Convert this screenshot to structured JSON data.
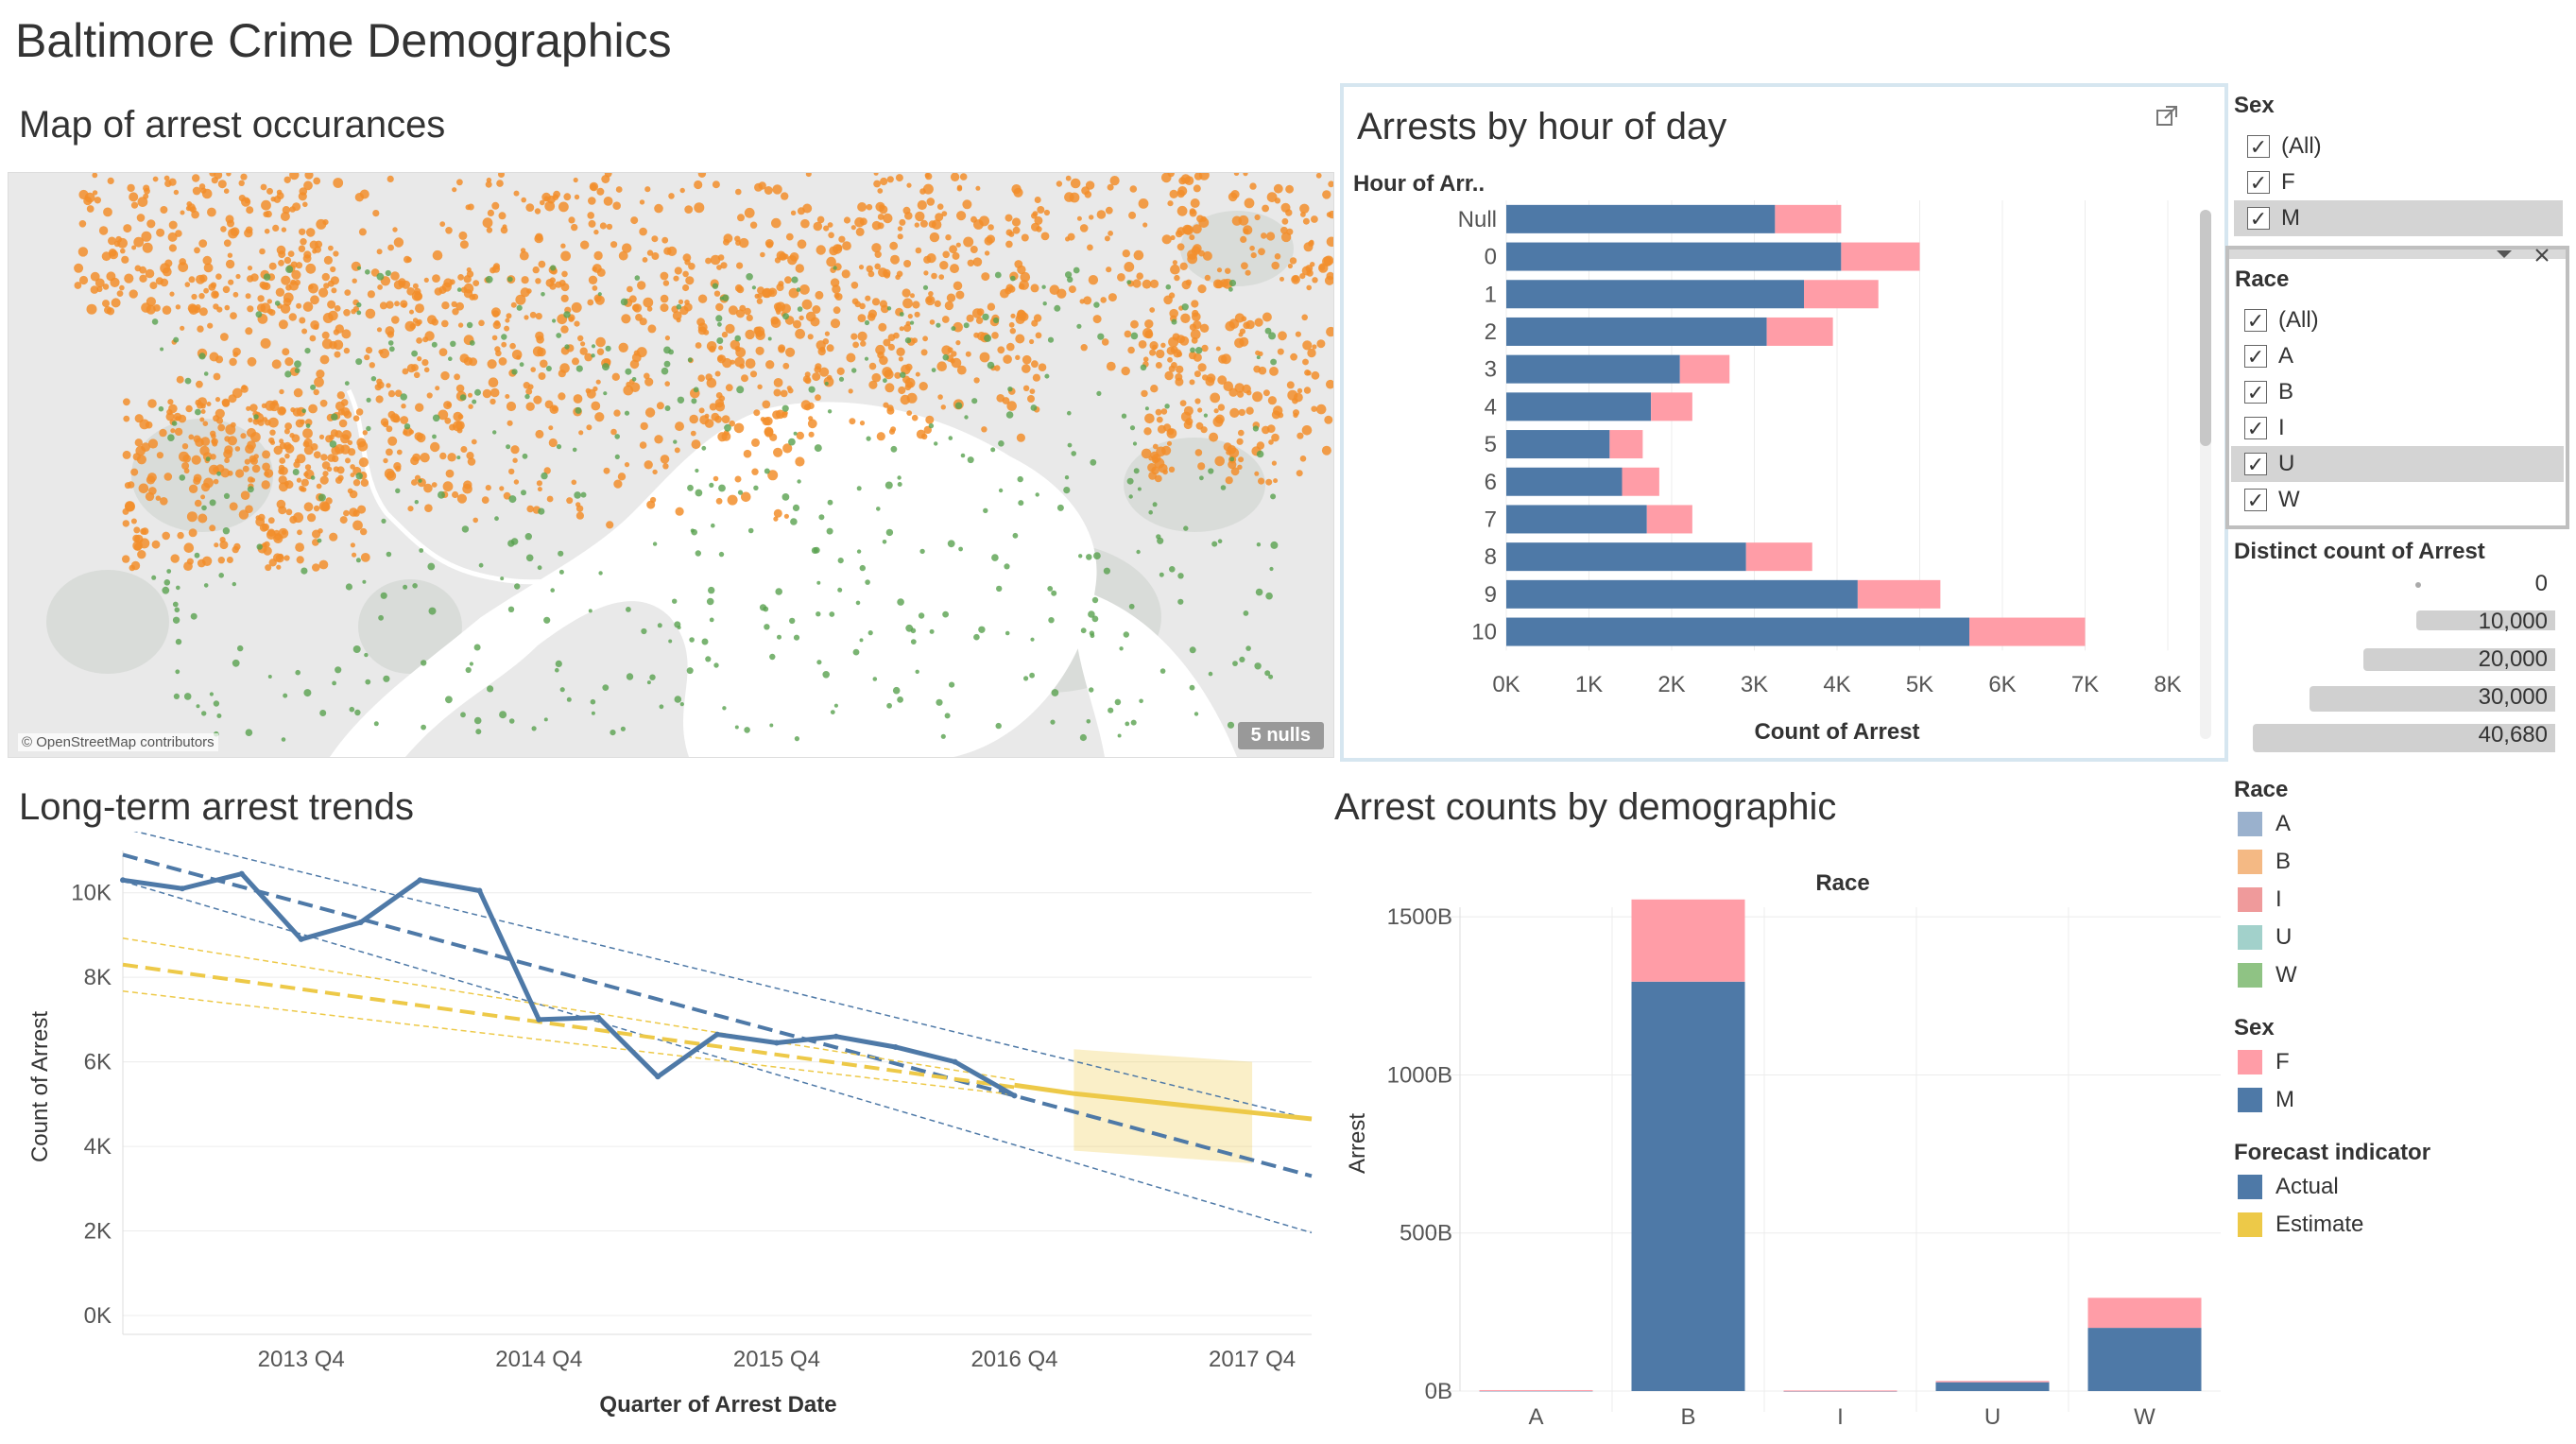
{
  "dashboard": {
    "title": "Baltimore Crime Demographics"
  },
  "map": {
    "title": "Map of arrest occurances",
    "credit": "© OpenStreetMap contributors",
    "nulls_badge": "5 nulls",
    "colors": {
      "land": "#e9e9e9",
      "park": "#d9dcd9",
      "water": "#ffffff",
      "dot_orange": "#f28e2b",
      "dot_green": "#59a14f"
    }
  },
  "hour_chart": {
    "title": "Arrests by hour of day",
    "row_header": "Hour of Arr..",
    "x_label": "Count of Arrest",
    "x_ticks": [
      "0K",
      "1K",
      "2K",
      "3K",
      "4K",
      "5K",
      "6K",
      "7K",
      "8K"
    ],
    "chart_data": {
      "type": "bar",
      "orientation": "horizontal",
      "stacked": true,
      "categories": [
        "Null",
        "0",
        "1",
        "2",
        "3",
        "4",
        "5",
        "6",
        "7",
        "8",
        "9",
        "10"
      ],
      "series": [
        {
          "name": "M",
          "color": "#4e79a7",
          "values": [
            3250,
            4050,
            3600,
            3150,
            2100,
            1750,
            1250,
            1400,
            1700,
            2900,
            4250,
            5600
          ]
        },
        {
          "name": "F",
          "color": "#ff9da7",
          "values": [
            800,
            950,
            900,
            800,
            600,
            500,
            400,
            450,
            550,
            800,
            1000,
            1400
          ]
        }
      ],
      "xlim": [
        0,
        8000
      ]
    }
  },
  "filters": {
    "sex": {
      "title": "Sex",
      "items": [
        {
          "label": "(All)",
          "checked": "✓"
        },
        {
          "label": "F",
          "checked": "✓"
        },
        {
          "label": "M",
          "checked": "✓"
        }
      ]
    },
    "race": {
      "title": "Race",
      "items": [
        {
          "label": "(All)",
          "checked": "✓"
        },
        {
          "label": "A",
          "checked": "✓"
        },
        {
          "label": "B",
          "checked": "✓"
        },
        {
          "label": "I",
          "checked": "✓"
        },
        {
          "label": "U",
          "checked": "✓"
        },
        {
          "label": "W",
          "checked": "✓"
        }
      ]
    }
  },
  "size_legend": {
    "title": "Distinct count of Arrest",
    "items": [
      {
        "label": "0",
        "value": 0
      },
      {
        "label": "10,000",
        "value": 10000
      },
      {
        "label": "20,000",
        "value": 20000
      },
      {
        "label": "30,000",
        "value": 30000
      },
      {
        "label": "40,680",
        "value": 40680
      }
    ]
  },
  "color_legends": {
    "race": {
      "title": "Race",
      "items": [
        {
          "label": "A",
          "color": "#9ab1cd"
        },
        {
          "label": "B",
          "color": "#f4b984"
        },
        {
          "label": "I",
          "color": "#ef9a9b"
        },
        {
          "label": "U",
          "color": "#a2d1cb"
        },
        {
          "label": "W",
          "color": "#8fc384"
        }
      ]
    },
    "sex": {
      "title": "Sex",
      "items": [
        {
          "label": "F",
          "color": "#ff9da7"
        },
        {
          "label": "M",
          "color": "#4e79a7"
        }
      ]
    },
    "forecast": {
      "title": "Forecast indicator",
      "items": [
        {
          "label": "Actual",
          "color": "#4e79a7"
        },
        {
          "label": "Estimate",
          "color": "#edc948"
        }
      ]
    }
  },
  "trend_chart": {
    "title": "Long-term arrest trends",
    "x_label": "Quarter of Arrest Date",
    "y_label": "Count of Arrest",
    "x_ticks": [
      "2013 Q4",
      "2014 Q4",
      "2015 Q4",
      "2016 Q4",
      "2017 Q4"
    ],
    "y_ticks": [
      "0K",
      "2K",
      "4K",
      "6K",
      "8K",
      "10K"
    ],
    "chart_data": {
      "type": "line",
      "x_unit": "quarter",
      "x": [
        "2013 Q1",
        "2013 Q2",
        "2013 Q3",
        "2013 Q4",
        "2014 Q1",
        "2014 Q2",
        "2014 Q3",
        "2014 Q4",
        "2015 Q1",
        "2015 Q2",
        "2015 Q3",
        "2015 Q4",
        "2016 Q1",
        "2016 Q2",
        "2016 Q3",
        "2016 Q4"
      ],
      "series": [
        {
          "name": "Actual",
          "color": "#4e79a7",
          "values": [
            10300,
            10100,
            10450,
            8900,
            9300,
            10300,
            10050,
            7000,
            7050,
            5650,
            6650,
            6450,
            6600,
            6350,
            6000,
            5200
          ]
        }
      ],
      "forecast": {
        "name": "Estimate",
        "color": "#edc948",
        "x": [
          "2016 Q4",
          "2017 Q1",
          "2017 Q2",
          "2017 Q3",
          "2017 Q4",
          "2018 Q1"
        ],
        "values": [
          5450,
          5250,
          5100,
          4950,
          4800,
          4650
        ],
        "band_low": [
          null,
          3900,
          3800,
          3700,
          3600,
          null
        ],
        "band_high": [
          null,
          6300,
          6200,
          6100,
          6000,
          null
        ]
      },
      "trend_lines": [
        {
          "color": "#4e79a7",
          "kind": "actual-trend",
          "start": {
            "x": "2013 Q1",
            "y": 10900
          },
          "end": {
            "x": "2018 Q1",
            "y": 3300
          }
        },
        {
          "color": "#edc948",
          "kind": "estimate-trend",
          "start": {
            "x": "2013 Q1",
            "y": 8300
          },
          "end": {
            "x": "2016 Q4",
            "y": 5400
          }
        }
      ],
      "ylim": [
        0,
        11000
      ]
    }
  },
  "demo_chart": {
    "title": "Arrest counts by demographic",
    "column_header": "Race",
    "y_label": "Arrest",
    "y_ticks": [
      "0B",
      "500B",
      "1000B",
      "1500B"
    ],
    "chart_data": {
      "type": "bar",
      "stacked": true,
      "categories": [
        "A",
        "B",
        "I",
        "U",
        "W"
      ],
      "series": [
        {
          "name": "M",
          "color": "#4e79a7",
          "values": [
            2,
            1295,
            1,
            28,
            200
          ]
        },
        {
          "name": "F",
          "color": "#ff9da7",
          "values": [
            1,
            260,
            1,
            4,
            95
          ]
        }
      ],
      "ylim": [
        0,
        1650
      ]
    }
  }
}
